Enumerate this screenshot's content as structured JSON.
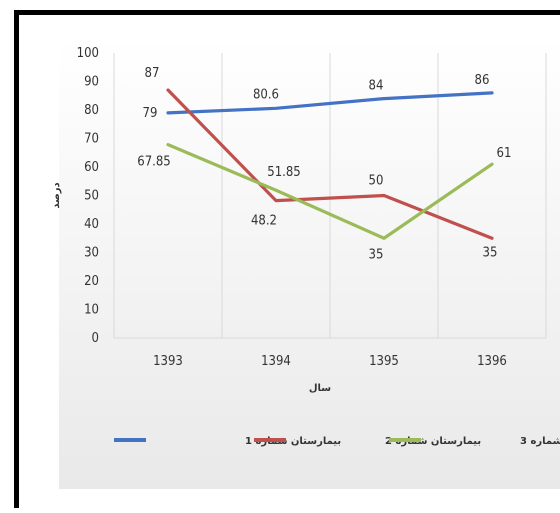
{
  "chart_data": {
    "type": "line",
    "categories": [
      "1393",
      "1394",
      "1395",
      "1396"
    ],
    "xlabel": "سال",
    "ylabel": "درصد",
    "ylim": [
      0,
      100
    ],
    "yticks": [
      "0",
      "10",
      "20",
      "30",
      "40",
      "50",
      "60",
      "70",
      "80",
      "90",
      "100"
    ],
    "grid": "vertical",
    "legend_position": "bottom",
    "series": [
      {
        "name": "بیمارستان شماره 1",
        "color": "#4472c4",
        "values": [
          79,
          80.6,
          84,
          86
        ],
        "labels": [
          "79",
          "80.6",
          "84",
          "86"
        ]
      },
      {
        "name": "بیمارستان شماره 2",
        "color": "#c0504d",
        "values": [
          87,
          48.2,
          50,
          35
        ],
        "labels": [
          "87",
          "48.2",
          "50",
          "35"
        ]
      },
      {
        "name": "بیمارستان شماره 3",
        "color": "#9bbb59",
        "values": [
          67.85,
          51.85,
          35,
          61
        ],
        "labels": [
          "67.85",
          "51.85",
          "35",
          "61"
        ]
      }
    ]
  }
}
